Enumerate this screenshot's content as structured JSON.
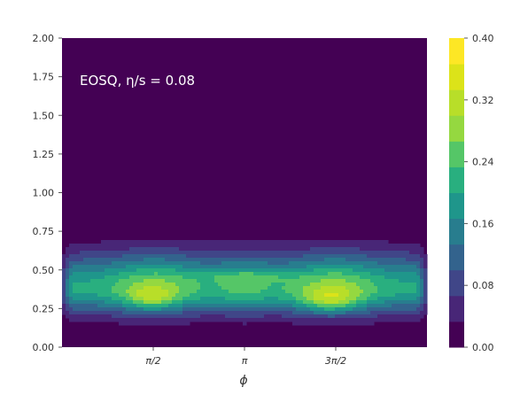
{
  "chart_data": {
    "type": "heatmap",
    "annotation": "EOSQ,  η/s = 0.08",
    "xlabel": "ϕ",
    "ylabel": "",
    "xlim": [
      0,
      6.2832
    ],
    "ylim": [
      0,
      2.0
    ],
    "x_ticks": [
      {
        "value": 1.5708,
        "label": "π/2"
      },
      {
        "value": 3.1416,
        "label": "π"
      },
      {
        "value": 4.7124,
        "label": "3π/2"
      }
    ],
    "y_ticks": [
      {
        "value": 0.0,
        "label": "0.00"
      },
      {
        "value": 0.25,
        "label": "0.25"
      },
      {
        "value": 0.5,
        "label": "0.50"
      },
      {
        "value": 0.75,
        "label": "0.75"
      },
      {
        "value": 1.0,
        "label": "1.00"
      },
      {
        "value": 1.25,
        "label": "1.25"
      },
      {
        "value": 1.5,
        "label": "1.50"
      },
      {
        "value": 1.75,
        "label": "1.75"
      },
      {
        "value": 2.0,
        "label": "2.00"
      }
    ],
    "colorbar": {
      "colormap": "viridis",
      "range": [
        0.0,
        0.4
      ],
      "levels": 12,
      "tick_labels": [
        "0.00",
        "0.08",
        "0.16",
        "0.24",
        "0.32",
        "0.40"
      ],
      "tick_values": [
        0.0,
        0.08,
        0.16,
        0.24,
        0.32,
        0.4
      ],
      "colors": [
        "#440154",
        "#482677",
        "#404688",
        "#33638d",
        "#287d8e",
        "#1f968b",
        "#29af7f",
        "#55c667",
        "#95d840",
        "#b8de29",
        "#dce319",
        "#fde725"
      ]
    },
    "density": {
      "y_center": 0.38,
      "y_sigma_low": 0.16,
      "y_sigma_high": 0.22,
      "edge_width": 0.25,
      "base": 0.2,
      "phi_modulation": [
        {
          "center": 1.5708,
          "width": 0.75,
          "amp": 0.08
        },
        {
          "center": 4.7124,
          "width": 0.75,
          "amp": 0.08
        },
        {
          "center": 3.1416,
          "width": 0.6,
          "amp": 0.04
        }
      ],
      "hotspots": [
        {
          "x": 1.55,
          "y": 0.31,
          "sx": 0.4,
          "sy": 0.07,
          "amp": 0.08
        },
        {
          "x": 4.6,
          "y": 0.3,
          "sx": 0.5,
          "sy": 0.08,
          "amp": 0.1
        },
        {
          "x": 3.2,
          "y": 0.46,
          "sx": 0.9,
          "sy": 0.04,
          "amp": 0.04
        }
      ]
    }
  }
}
